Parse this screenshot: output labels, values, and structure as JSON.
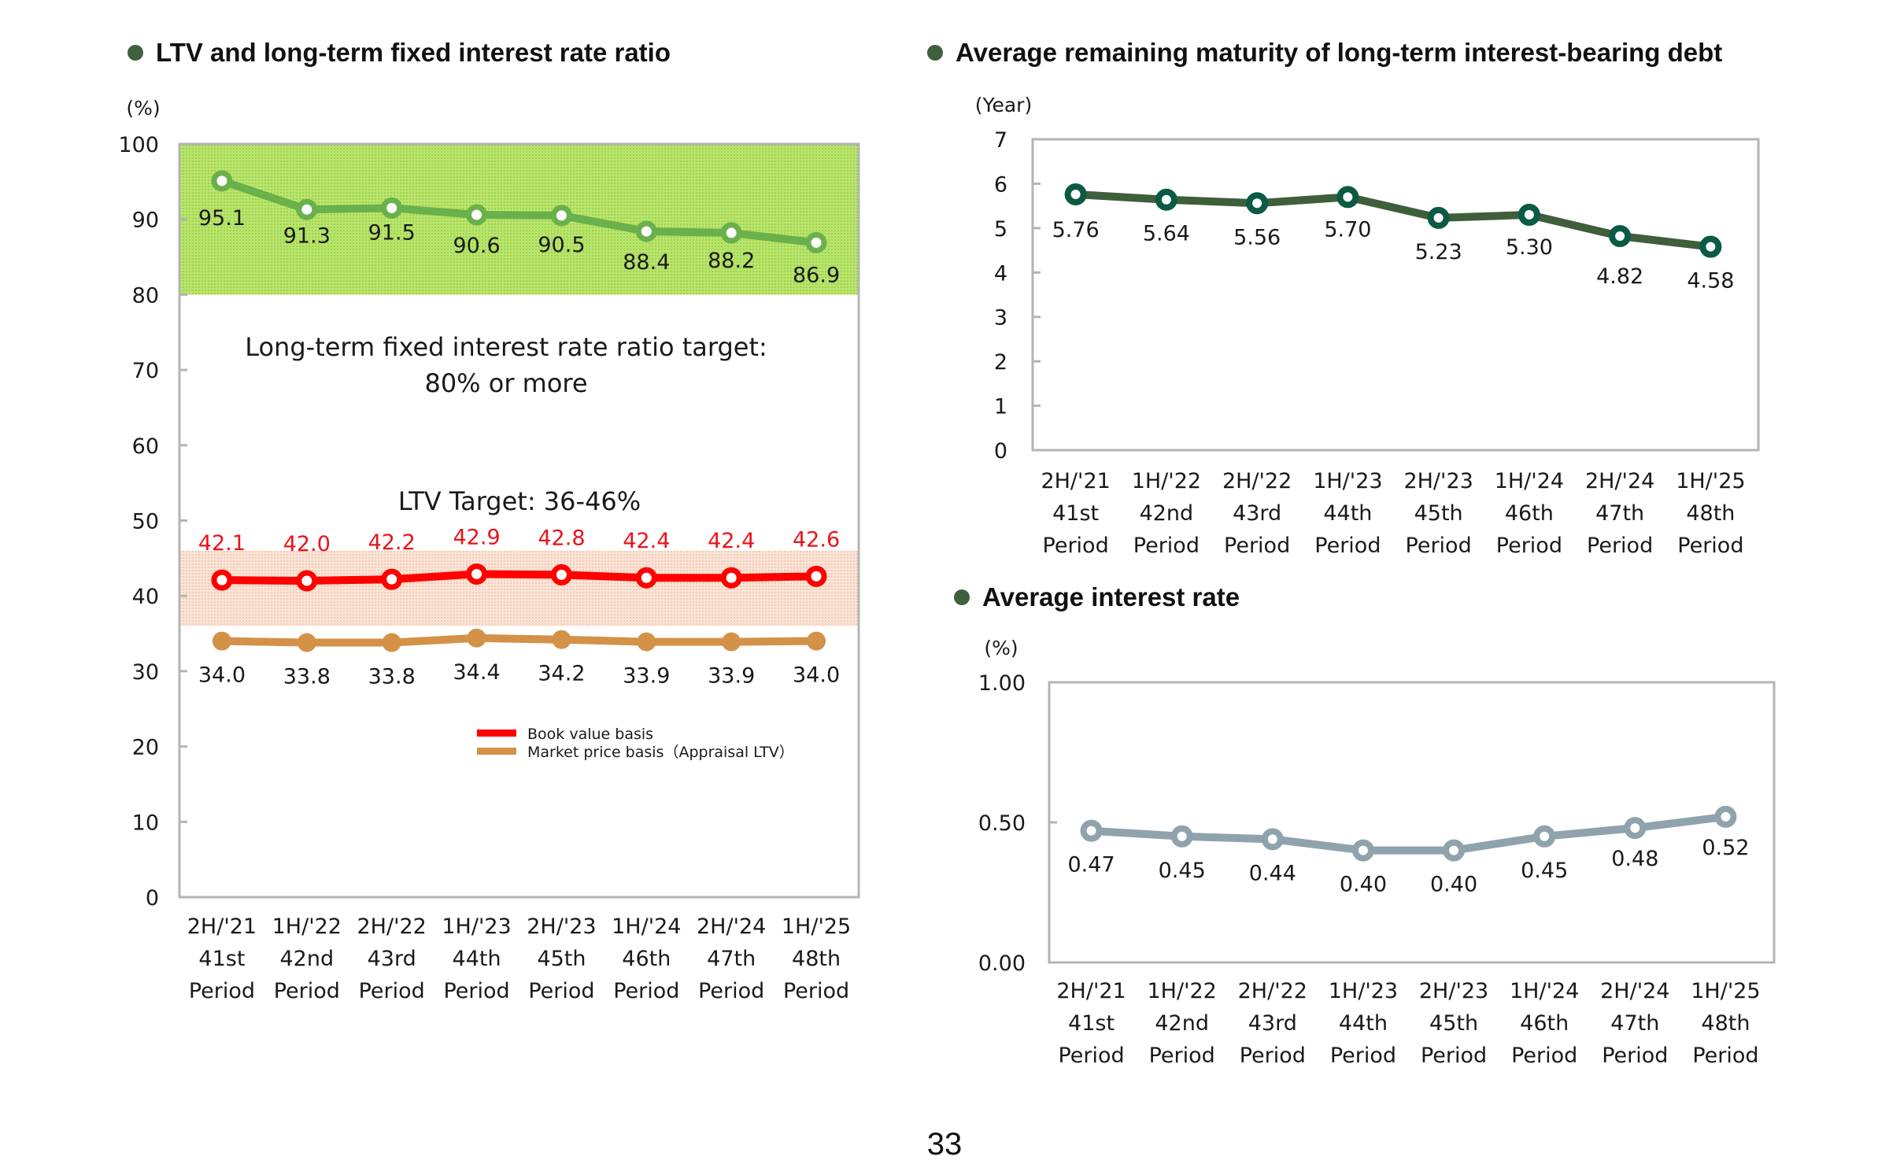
{
  "page_number": "33",
  "colors": {
    "bullet": "#3f5f3f",
    "ltv_book": "#ff0000",
    "ltv_market": "#d39248",
    "fixed_ratio": "#6ab04c",
    "fixed_band": "#a8dc5a",
    "ltv_band": "#f6d2c0",
    "maturity": "#3e5e3c",
    "maturity_marker": "#0b5a44",
    "interest": "#8fa3ad",
    "axis": "#b4b4b4"
  },
  "chart_data": [
    {
      "id": "ltv",
      "type": "line",
      "title": "LTV and long-term fixed interest rate ratio",
      "ylabel": "(%)",
      "ylim": [
        0,
        100
      ],
      "yticks": [
        "0",
        "10",
        "20",
        "30",
        "40",
        "50",
        "60",
        "70",
        "80",
        "90",
        "100"
      ],
      "categories": [
        [
          "2H/'21",
          "41st",
          "Period"
        ],
        [
          "1H/'22",
          "42nd",
          "Period"
        ],
        [
          "2H/'22",
          "43rd",
          "Period"
        ],
        [
          "1H/'23",
          "44th",
          "Period"
        ],
        [
          "2H/'23",
          "45th",
          "Period"
        ],
        [
          "1H/'24",
          "46th",
          "Period"
        ],
        [
          "2H/'24",
          "47th",
          "Period"
        ],
        [
          "1H/'25",
          "48th",
          "Period"
        ]
      ],
      "bands": [
        {
          "name": "Long-term fixed interest rate ratio target",
          "from": 80,
          "to": 100
        },
        {
          "name": "LTV Target",
          "from": 36,
          "to": 46
        }
      ],
      "annotations": {
        "fixed_target_line1": "Long-term fixed interest rate ratio target:",
        "fixed_target_line2": "80% or more",
        "ltv_target": "LTV Target: 36-46%"
      },
      "series": [
        {
          "name": "Long-term fixed interest rate ratio",
          "values": [
            95.1,
            91.3,
            91.5,
            90.6,
            90.5,
            88.4,
            88.2,
            86.9
          ],
          "labels": [
            "95.1",
            "91.3",
            "91.5",
            "90.6",
            "90.5",
            "88.4",
            "88.2",
            "86.9"
          ]
        },
        {
          "name": "Book value basis",
          "values": [
            42.1,
            42.0,
            42.2,
            42.9,
            42.8,
            42.4,
            42.4,
            42.6
          ],
          "labels": [
            "42.1",
            "42.0",
            "42.2",
            "42.9",
            "42.8",
            "42.4",
            "42.4",
            "42.6"
          ]
        },
        {
          "name": "Market price  basis（Appraisal LTV）",
          "values": [
            34.0,
            33.8,
            33.8,
            34.4,
            34.2,
            33.9,
            33.9,
            34.0
          ],
          "labels": [
            "34.0",
            "33.8",
            "33.8",
            "34.4",
            "34.2",
            "33.9",
            "33.9",
            "34.0"
          ]
        }
      ],
      "legend": [
        "Book value basis",
        "Market price  basis（Appraisal LTV）"
      ],
      "legend_position": "lower-right"
    },
    {
      "id": "maturity",
      "type": "line",
      "title": "Average remaining maturity of long-term interest-bearing debt",
      "ylabel": "(Year)",
      "ylim": [
        0,
        7
      ],
      "yticks": [
        "0",
        "1",
        "2",
        "3",
        "4",
        "5",
        "6",
        "7"
      ],
      "categories": [
        [
          "2H/'21",
          "41st",
          "Period"
        ],
        [
          "1H/'22",
          "42nd",
          "Period"
        ],
        [
          "2H/'22",
          "43rd",
          "Period"
        ],
        [
          "1H/'23",
          "44th",
          "Period"
        ],
        [
          "2H/'23",
          "45th",
          "Period"
        ],
        [
          "1H/'24",
          "46th",
          "Period"
        ],
        [
          "2H/'24",
          "47th",
          "Period"
        ],
        [
          "1H/'25",
          "48th",
          "Period"
        ]
      ],
      "series": [
        {
          "name": "Average remaining maturity",
          "values": [
            5.76,
            5.64,
            5.56,
            5.7,
            5.23,
            5.3,
            4.82,
            4.58
          ],
          "labels": [
            "5.76",
            "5.64",
            "5.56",
            "5.70",
            "5.23",
            "5.30",
            "4.82",
            "4.58"
          ]
        }
      ]
    },
    {
      "id": "interest",
      "type": "line",
      "title": "Average interest rate",
      "ylabel": "(%)",
      "ylim": [
        0,
        1.0
      ],
      "yticks": [
        "0.00",
        "0.50",
        "1.00"
      ],
      "categories": [
        [
          "2H/'21",
          "41st",
          "Period"
        ],
        [
          "1H/'22",
          "42nd",
          "Period"
        ],
        [
          "2H/'22",
          "43rd",
          "Period"
        ],
        [
          "1H/'23",
          "44th",
          "Period"
        ],
        [
          "2H/'23",
          "45th",
          "Period"
        ],
        [
          "1H/'24",
          "46th",
          "Period"
        ],
        [
          "2H/'24",
          "47th",
          "Period"
        ],
        [
          "1H/'25",
          "48th",
          "Period"
        ]
      ],
      "series": [
        {
          "name": "Average interest rate",
          "values": [
            0.47,
            0.45,
            0.44,
            0.4,
            0.4,
            0.45,
            0.48,
            0.52
          ],
          "labels": [
            "0.47",
            "0.45",
            "0.44",
            "0.40",
            "0.40",
            "0.45",
            "0.48",
            "0.52"
          ]
        }
      ]
    }
  ]
}
